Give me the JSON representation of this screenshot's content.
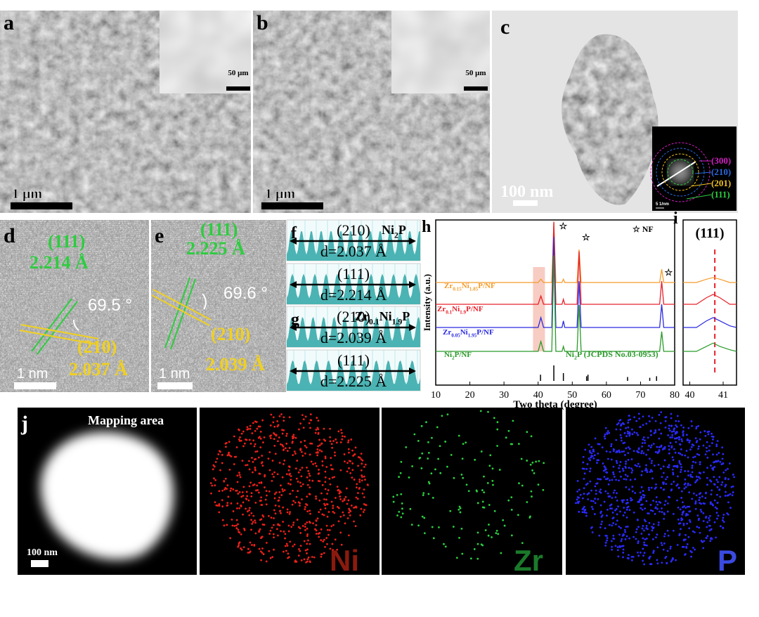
{
  "panels": {
    "a": {
      "label": "a",
      "scale_bar": "1 μm",
      "inset_scale_bar": "50 μm"
    },
    "b": {
      "label": "b",
      "scale_bar": "1 μm",
      "inset_scale_bar": "50 μm"
    },
    "c": {
      "label": "c",
      "scale_bar": "100 nm",
      "saed_scale_bar": "5 1/nm",
      "rings": [
        "(300)",
        "(210)",
        "(201)",
        "(111)"
      ]
    },
    "d": {
      "label": "d",
      "plane_1": "(111)",
      "spacing_1": "2.214 Å",
      "angle": "69.5 °",
      "plane_2": "(210)",
      "spacing_2": "2.037 Å",
      "scale_bar": "1 nm"
    },
    "e": {
      "label": "e",
      "plane_1": "(111)",
      "spacing_1": "2.225 Å",
      "angle": "69.6 °",
      "plane_2": "(210)",
      "spacing_2": "2.039 Å",
      "scale_bar": "1 nm"
    },
    "f": {
      "label": "f",
      "sample": [
        "Ni",
        "2",
        "P"
      ],
      "profiles": [
        {
          "plane": "(210)",
          "spacing": "d=2.037 Å"
        },
        {
          "plane": "(111)",
          "spacing": "d=2.214 Å"
        }
      ]
    },
    "g": {
      "label": "g",
      "sample": [
        "Zr",
        "0.1",
        "Ni",
        "1.9",
        "P"
      ],
      "profiles": [
        {
          "plane": "(210)",
          "spacing": "d=2.039 Å"
        },
        {
          "plane": "(111)",
          "spacing": "d=2.225 Å"
        }
      ]
    },
    "j": {
      "label": "j",
      "title": "Mapping area",
      "scale_bar": "100 nm",
      "elements": [
        "Ni",
        "Zr",
        "P"
      ]
    }
  },
  "chart_h": {
    "type": "line",
    "label": "h",
    "xlabel": "Two theta (degree)",
    "ylabel": "Intensity (a.u.)",
    "xlim": [
      10,
      80
    ],
    "xticks": [
      10,
      20,
      30,
      40,
      50,
      60,
      70,
      80
    ],
    "ylim": [
      0,
      100
    ],
    "legend_nf": "☆ NF",
    "nf_peaks": [
      {
        "value": 45.3,
        "label": "☆"
      },
      {
        "value": 52,
        "label": "☆"
      },
      {
        "value": 76.2,
        "label": "☆"
      }
    ],
    "highlight": [
      38.5,
      42
    ],
    "x": [
      10,
      40,
      40.8,
      41.6,
      44,
      44.6,
      45.2,
      47,
      47.4,
      47.8,
      51.4,
      52,
      52.6,
      75.6,
      76.2,
      76.8,
      80
    ],
    "series": [
      {
        "name": [
          "Zr",
          "0.15",
          "Ni",
          "1.85",
          "P/NF"
        ],
        "color": "#f39c2c",
        "values": [
          0,
          0,
          2,
          0,
          0,
          36,
          0,
          0,
          2,
          0,
          0,
          20,
          0,
          0,
          8,
          0,
          0
        ]
      },
      {
        "name": [
          "Zr",
          "0.1",
          "Ni",
          "1.9",
          "P/NF"
        ],
        "color": "#e8202a",
        "values": [
          0,
          0,
          5,
          0,
          0,
          50,
          0,
          0,
          3,
          0,
          0,
          32,
          0,
          0,
          14,
          0,
          0
        ]
      },
      {
        "name": [
          "Zr",
          "0.05",
          "Ni",
          "1.95",
          "P/NF"
        ],
        "color": "#2a2ae0",
        "values": [
          0,
          0,
          6,
          0,
          0,
          55,
          0,
          0,
          4,
          0,
          0,
          28,
          0,
          0,
          14,
          0,
          0
        ]
      },
      {
        "name": [
          "Ni",
          "2",
          "P/NF"
        ],
        "color": "#2a9a2a",
        "values": [
          0,
          0,
          6,
          0,
          0,
          58,
          0,
          0,
          3,
          0,
          0,
          28,
          0,
          0,
          12,
          0,
          0
        ]
      }
    ],
    "reference": {
      "name": [
        "Ni",
        "2",
        "P (JCPDS No.03-0953)"
      ],
      "x": [
        40.7,
        44.6,
        47.4,
        54.2,
        54.6,
        66.2,
        72.7,
        74.7
      ],
      "values": [
        40,
        100,
        50,
        30,
        40,
        25,
        20,
        30
      ]
    }
  },
  "chart_i": {
    "type": "line",
    "label": "i",
    "title": "(111)",
    "xlim": [
      39.8,
      41.4
    ],
    "xticks": [
      40,
      41
    ],
    "ylim": [
      0,
      100
    ],
    "marker_line": 40.75,
    "x": [
      39.8,
      40.2,
      40.5,
      40.7,
      40.9,
      41.2,
      41.4
    ],
    "series_values": [
      [
        0,
        0,
        2,
        3,
        2,
        0,
        0
      ],
      [
        0,
        0,
        4,
        6,
        4,
        0,
        0
      ],
      [
        0,
        0,
        4,
        6,
        4,
        1,
        0
      ],
      [
        0,
        0,
        3,
        5,
        3,
        1,
        0
      ]
    ]
  }
}
